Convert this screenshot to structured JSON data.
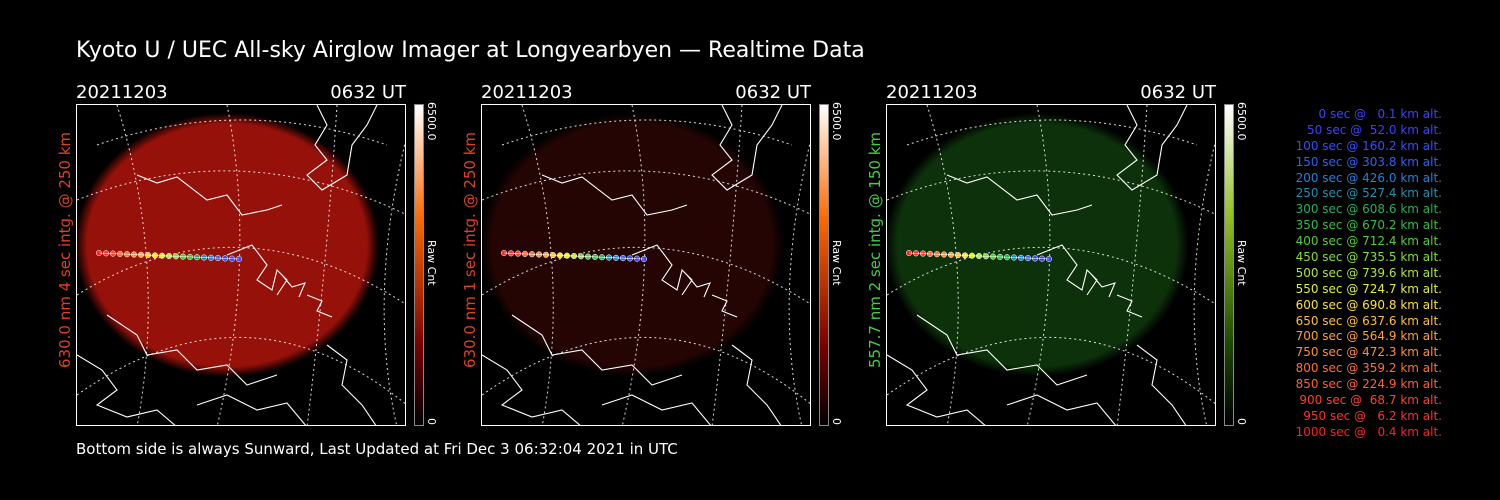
{
  "title": "Kyoto U / UEC All-sky Airglow Imager at Longyearbyen — Realtime Data",
  "footer": "Bottom side is always Sunward, Last Updated at Fri Dec  3 06:32:04 2021 in UTC",
  "panels": [
    {
      "date": "20211203",
      "time": "0632 UT",
      "side_label": "630.0 nm 4 sec intg. @ 250 km",
      "label_color": "#e04020",
      "colorbar_max": "6500.0",
      "colorbar_min": "0",
      "colorbar_unit": "Raw Cnt",
      "glow_color": "#b0140c",
      "glow_brightness": 0.85,
      "bar_top": "#ffffff",
      "bar_mid": "#ff6a00",
      "bar_low": "#7a0000"
    },
    {
      "date": "20211203",
      "time": "0632 UT",
      "side_label": "630.0 nm 1 sec intg. @ 250 km",
      "label_color": "#e04020",
      "colorbar_max": "6500.0",
      "colorbar_min": "0",
      "colorbar_unit": "Raw Cnt",
      "glow_color": "#2a0605",
      "glow_brightness": 0.85,
      "bar_top": "#ffffff",
      "bar_mid": "#ff6a00",
      "bar_low": "#7a0000"
    },
    {
      "date": "20211203",
      "time": "0632 UT",
      "side_label": "557.7 nm 2 sec intg. @ 150 km",
      "label_color": "#40d040",
      "colorbar_max": "6500.0",
      "colorbar_min": "0",
      "colorbar_unit": "Raw Cnt",
      "glow_color": "#0f3a0c",
      "glow_brightness": 0.85,
      "bar_top": "#ffffff",
      "bar_mid": "#90c020",
      "bar_low": "#1a4a00"
    }
  ],
  "legend": [
    {
      "text": "0 sec @   0.1 km alt.",
      "color": "#4040ff"
    },
    {
      "text": "50 sec @  52.0 km alt.",
      "color": "#4040ff"
    },
    {
      "text": "100 sec @ 160.2 km alt.",
      "color": "#3050ff"
    },
    {
      "text": "150 sec @ 303.8 km alt.",
      "color": "#3060f0"
    },
    {
      "text": "200 sec @ 426.0 km alt.",
      "color": "#2080e0"
    },
    {
      "text": "250 sec @ 527.4 km alt.",
      "color": "#2090b0"
    },
    {
      "text": "300 sec @ 608.6 km alt.",
      "color": "#20b060"
    },
    {
      "text": "350 sec @ 670.2 km alt.",
      "color": "#30c040"
    },
    {
      "text": "400 sec @ 712.4 km alt.",
      "color": "#50d030"
    },
    {
      "text": "450 sec @ 735.5 km alt.",
      "color": "#80e030"
    },
    {
      "text": "500 sec @ 739.6 km alt.",
      "color": "#b0e830"
    },
    {
      "text": "550 sec @ 724.7 km alt.",
      "color": "#e0f030"
    },
    {
      "text": "600 sec @ 690.8 km alt.",
      "color": "#ffe030"
    },
    {
      "text": "650 sec @ 637.6 km alt.",
      "color": "#ffc030"
    },
    {
      "text": "700 sec @ 564.9 km alt.",
      "color": "#ffa030"
    },
    {
      "text": "750 sec @ 472.3 km alt.",
      "color": "#ff9030"
    },
    {
      "text": "800 sec @ 359.2 km alt.",
      "color": "#ff7030"
    },
    {
      "text": "850 sec @ 224.9 km alt.",
      "color": "#ff6030"
    },
    {
      "text": "900 sec @  68.7 km alt.",
      "color": "#ff4030"
    },
    {
      "text": "950 sec @   6.2 km alt.",
      "color": "#ff3030"
    },
    {
      "text": "1000 sec @   0.4 km alt.",
      "color": "#ff2020"
    }
  ]
}
